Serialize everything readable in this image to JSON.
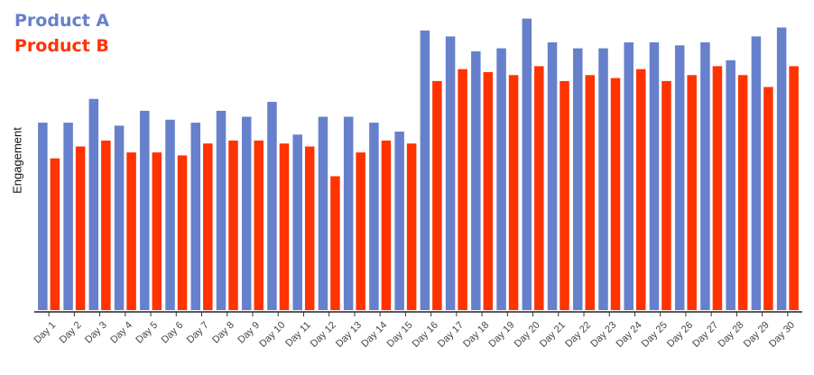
{
  "chart_data": {
    "type": "bar",
    "title": "",
    "xlabel": "",
    "ylabel": "Engagement",
    "ylim": [
      0,
      100
    ],
    "grid": false,
    "legend_position": "top-left",
    "categories": [
      "Day 1",
      "Day 2",
      "Day 3",
      "Day 4",
      "Day 5",
      "Day 6",
      "Day 7",
      "Day 8",
      "Day 9",
      "Day 10",
      "Day 11",
      "Day 12",
      "Day 13",
      "Day 14",
      "Day 15",
      "Day 16",
      "Day 17",
      "Day 18",
      "Day 19",
      "Day 20",
      "Day 21",
      "Day 22",
      "Day 23",
      "Day 24",
      "Day 25",
      "Day 26",
      "Day 27",
      "Day 28",
      "Day 29",
      "Day 30"
    ],
    "series": [
      {
        "name": "Product A",
        "color": "#6780cc",
        "values": [
          63,
          63,
          71,
          62,
          67,
          64,
          63,
          67,
          65,
          70,
          59,
          65,
          65,
          63,
          60,
          94,
          92,
          87,
          88,
          98,
          90,
          88,
          88,
          90,
          90,
          89,
          90,
          84,
          92,
          95
        ]
      },
      {
        "name": "Product B",
        "color": "#ff3300",
        "values": [
          51,
          55,
          57,
          53,
          53,
          52,
          56,
          57,
          57,
          56,
          55,
          45,
          53,
          57,
          56,
          77,
          81,
          80,
          79,
          82,
          77,
          79,
          78,
          81,
          77,
          79,
          82,
          79,
          75,
          82
        ]
      }
    ]
  }
}
